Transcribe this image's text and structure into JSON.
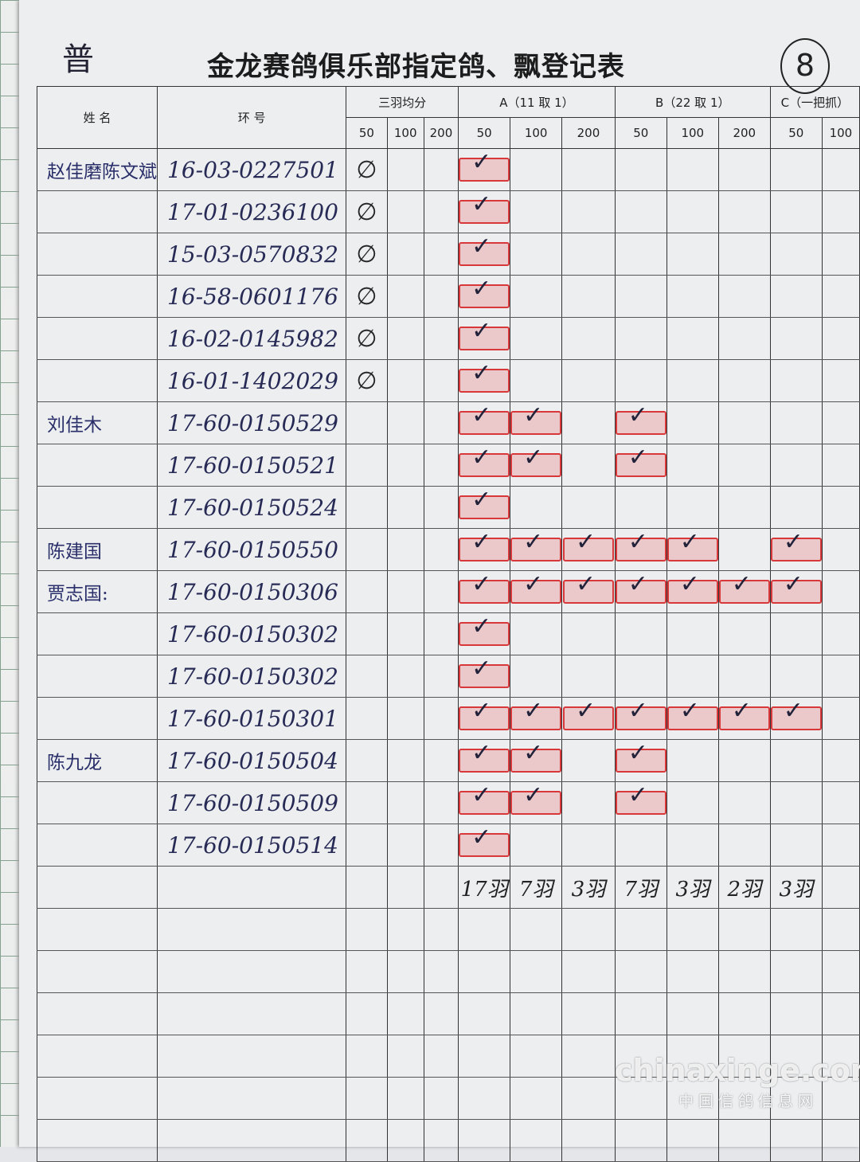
{
  "corner_mark": "普",
  "title": "金龙赛鸽俱乐部指定鸽、飘登记表",
  "page_number": "8",
  "headers": {
    "name": "姓 名",
    "ring": "环 号",
    "groups": [
      "三羽均分",
      "A（11 取 1）",
      "B（22 取 1）",
      "C（一把抓）"
    ],
    "distances": [
      "50",
      "100",
      "200",
      "50",
      "100",
      "200",
      "50",
      "100",
      "200",
      "50",
      "100"
    ]
  },
  "rows": [
    {
      "name": "赵佳磨陈文斌",
      "ring": "16-03-0227501",
      "marks": [
        0,
        3
      ]
    },
    {
      "name": "",
      "ring": "17-01-0236100",
      "marks": [
        0,
        3
      ]
    },
    {
      "name": "",
      "ring": "15-03-0570832",
      "marks": [
        0,
        3
      ]
    },
    {
      "name": "",
      "ring": "16-58-0601176",
      "marks": [
        0,
        3
      ]
    },
    {
      "name": "",
      "ring": "16-02-0145982",
      "marks": [
        0,
        3
      ]
    },
    {
      "name": "",
      "ring": "16-01-1402029",
      "marks": [
        0,
        3
      ]
    },
    {
      "name": "刘佳木",
      "ring": "17-60-0150529",
      "marks": [
        3,
        4,
        6
      ]
    },
    {
      "name": "",
      "ring": "17-60-0150521",
      "marks": [
        3,
        4,
        6
      ]
    },
    {
      "name": "",
      "ring": "17-60-0150524",
      "marks": [
        3
      ]
    },
    {
      "name": "陈建国",
      "ring": "17-60-0150550",
      "marks": [
        3,
        4,
        5,
        6,
        7,
        9
      ]
    },
    {
      "name": "贾志国:",
      "ring": "17-60-0150306",
      "marks": [
        3,
        4,
        5,
        6,
        7,
        8,
        9
      ]
    },
    {
      "name": "",
      "ring": "17-60-0150302",
      "marks": [
        3
      ]
    },
    {
      "name": "",
      "ring": "17-60-0150302",
      "marks": [
        3
      ]
    },
    {
      "name": "",
      "ring": "17-60-0150301",
      "marks": [
        3,
        4,
        5,
        6,
        7,
        8,
        9
      ]
    },
    {
      "name": "陈九龙",
      "ring": "17-60-0150504",
      "marks": [
        3,
        4,
        6
      ]
    },
    {
      "name": "",
      "ring": "17-60-0150509",
      "marks": [
        3,
        4,
        6
      ]
    },
    {
      "name": "",
      "ring": "17-60-0150514",
      "marks": [
        3
      ]
    }
  ],
  "totals": [
    "",
    "",
    "",
    "17羽",
    "7羽",
    "3羽",
    "7羽",
    "3羽",
    "2羽",
    "3羽",
    ""
  ],
  "empty_rows": 6,
  "colors": {
    "stamp": "#d8383a",
    "ink_blue": "#262a55"
  },
  "watermark": {
    "domain": "chinaxinge.com",
    "site": "中国信鸽信息网"
  }
}
